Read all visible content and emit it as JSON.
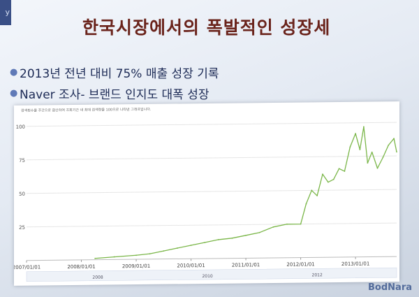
{
  "slide": {
    "title": "한국시장에서의 폭발적인 성장세",
    "bullets": [
      "2013년 전년 대비 75% 매출 성장 기록",
      "Naver 조사- 브랜드 인지도 대폭 성장"
    ],
    "watermark": "BodNara"
  },
  "chart_data": {
    "type": "line",
    "note": "검색횟수를 주간으로 합산하여 조회기간 내 최대 검색량을 100으로 나타낸 그래프입니다.",
    "y_ticks": [
      "100",
      "75",
      "50",
      "25"
    ],
    "x_ticks": [
      "2007/01/01",
      "2008/01/01",
      "2009/01/01",
      "2010/01/01",
      "2011/01/01",
      "2012/01/01",
      "2013/01/01"
    ],
    "navigator_labels": [
      "2008",
      "2010",
      "2012"
    ],
    "ylim": [
      0,
      100
    ],
    "xlim": [
      2007.0,
      2013.75
    ],
    "grid": true,
    "line_color": "#7ab648",
    "series": [
      {
        "x": [
          2008.25,
          2008.6,
          2009.0,
          2009.25,
          2009.5,
          2009.75,
          2010.0,
          2010.25,
          2010.5,
          2010.75,
          2011.0,
          2011.25,
          2011.5,
          2011.75,
          2012.0,
          2012.1,
          2012.2,
          2012.3,
          2012.4,
          2012.5,
          2012.6,
          2012.7,
          2012.8,
          2012.9,
          2013.0,
          2013.08,
          2013.15,
          2013.22,
          2013.3,
          2013.4,
          2013.5,
          2013.6,
          2013.7,
          2013.75
        ],
        "values": [
          1,
          2,
          3,
          4,
          6,
          8,
          10,
          12,
          14,
          15,
          17,
          19,
          23,
          25,
          25,
          40,
          50,
          46,
          62,
          56,
          58,
          66,
          64,
          82,
          92,
          80,
          97,
          70,
          78,
          66,
          74,
          83,
          88,
          78
        ]
      }
    ]
  }
}
